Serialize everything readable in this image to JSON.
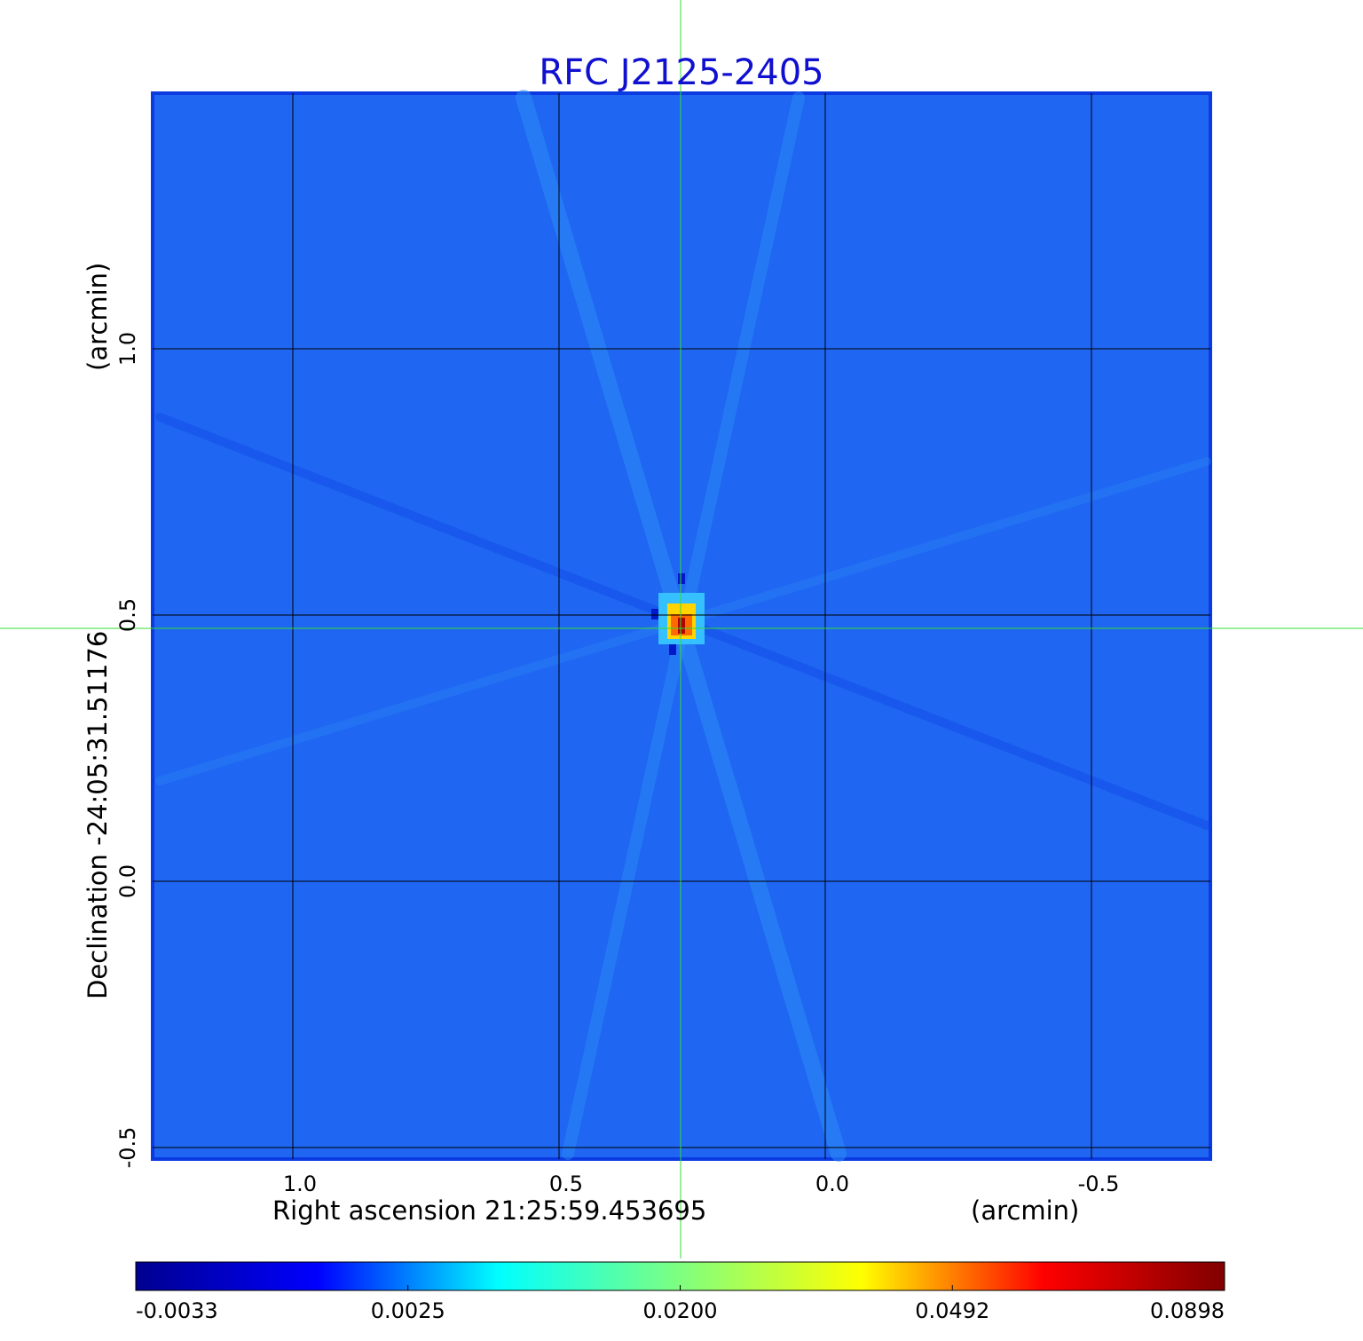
{
  "chart_data": {
    "type": "image",
    "title": "RFC J2125-2405",
    "x_label": "Right ascension  21:25:59.453695",
    "x_unit": "(arcmin)",
    "y_label": "Declination  -24:05:31.51176",
    "y_unit": "(arcmin)",
    "xlim": [
      1.2633,
      -0.7233
    ],
    "ylim": [
      -0.5217,
      1.48
    ],
    "xticks": [
      {
        "value": 1,
        "label": "1.0"
      },
      0.5,
      {
        "value": 0,
        "label": "0.0"
      },
      -0.5
    ],
    "yticks": [
      {
        "value": 1,
        "label": "1.0"
      },
      0.5,
      {
        "value": 0,
        "label": "0.0"
      },
      -0.5
    ],
    "grid": true,
    "colorbar_ticks": [
      -0.0033,
      0.0025,
      {
        "value": 0.02,
        "label": "0.0200"
      },
      0.0492,
      0.0898
    ],
    "colormap": [
      "#00008f",
      "#0000ff",
      "#00ffff",
      "#7fff7f",
      "#ffff00",
      "#ff0000",
      "#800000"
    ]
  }
}
